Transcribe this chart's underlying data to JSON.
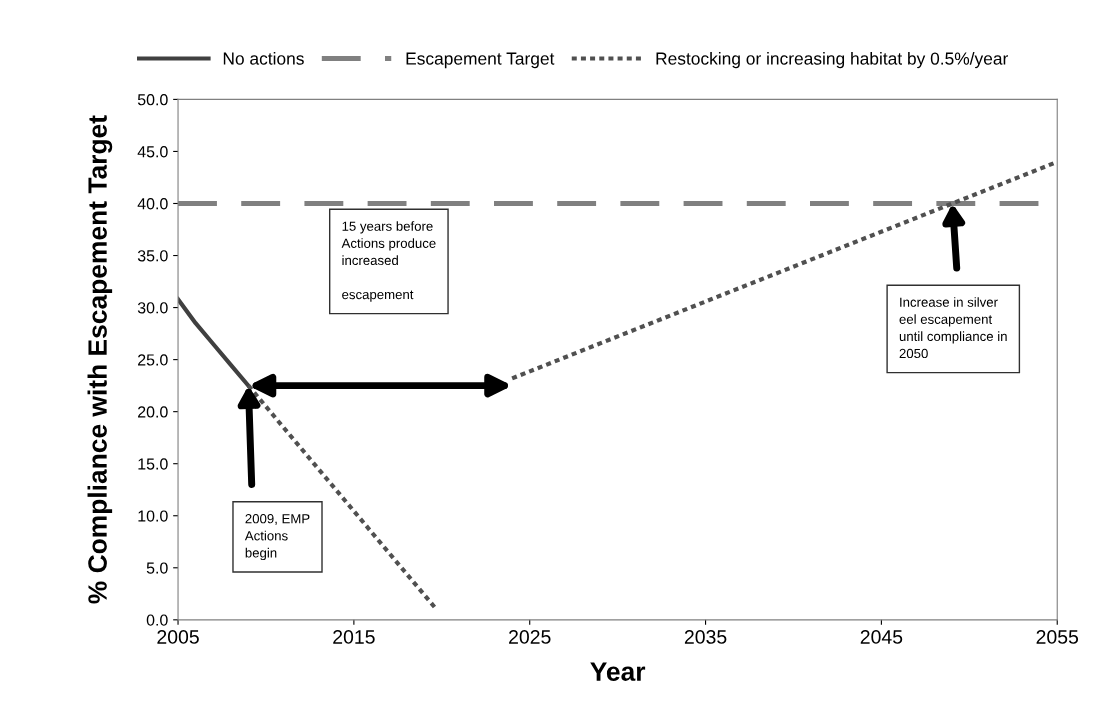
{
  "chart_data": {
    "type": "line",
    "xlabel": "Year",
    "ylabel": "% Compliance with Escapement Target",
    "xlim": [
      2005,
      2055
    ],
    "xticks": [
      2005,
      2015,
      2025,
      2035,
      2045,
      2055
    ],
    "ylim": [
      0,
      50
    ],
    "yticks": [
      {
        "value": 0,
        "label": "0.0"
      },
      {
        "value": 5,
        "label": "5.0"
      },
      {
        "value": 10,
        "label": "10.0"
      },
      {
        "value": 15,
        "label": "15.0"
      },
      {
        "value": 20,
        "label": "20.0"
      },
      {
        "value": 25,
        "label": "25.0"
      },
      {
        "value": 30,
        "label": "30.0"
      },
      {
        "value": 35,
        "label": "35.0"
      },
      {
        "value": 40,
        "label": "40.0"
      },
      {
        "value": 45,
        "label": "45.0"
      },
      {
        "value": 50,
        "label": "50.0"
      }
    ],
    "legend": "top",
    "grid": false,
    "series": [
      {
        "name": "No actions",
        "color": "#404040",
        "line_style": "solid",
        "x": [
          2005,
          2006,
          2007,
          2008,
          2009
        ],
        "values": [
          30.8,
          28.5,
          26.5,
          24.5,
          22.5
        ]
      },
      {
        "name": "Escapement Target",
        "color": "#808080",
        "line_style": "dashed",
        "x": [
          2005,
          2055
        ],
        "values": [
          40,
          40
        ]
      },
      {
        "name": "Restocking or increasing habitat by 0.5%/year",
        "color": "#505050",
        "line_style": "dotted",
        "x": [
          2024,
          2055
        ],
        "values": [
          23.2,
          44
        ]
      },
      {
        "color": "#505050",
        "line_style": "dotted",
        "x": [
          2009,
          2019.7
        ],
        "values": [
          22.5,
          1.0
        ]
      }
    ],
    "annotations": [
      "15 years before\nActions produce\nincreased\n\nescapement",
      "2009, EMP\nActions\nbegin",
      "Increase in silver\neel escapement\nuntil compliance in\n2050"
    ]
  }
}
